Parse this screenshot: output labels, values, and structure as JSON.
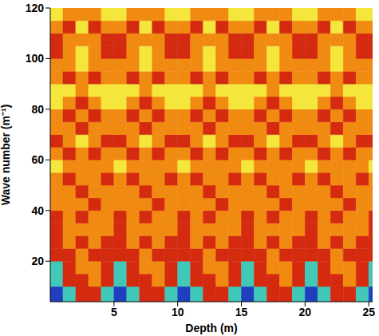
{
  "chart_data": {
    "type": "heatmap",
    "x_label": "Depth (m)",
    "y_label": "Wave number (m⁻¹)",
    "xlim": [
      0,
      25.3
    ],
    "ylim": [
      4,
      120
    ],
    "xticks": [
      5,
      10,
      15,
      20,
      25
    ],
    "yticks": [
      20,
      40,
      60,
      80,
      100,
      120
    ],
    "cells": {
      "x_edges": [
        0,
        1,
        2,
        3,
        4,
        5,
        6,
        7,
        8,
        9,
        10,
        11,
        12,
        13,
        14,
        15,
        16,
        17,
        18,
        19,
        20,
        21,
        22,
        23,
        24,
        25,
        25.3
      ],
      "y_edges": [
        4,
        10,
        15,
        20,
        25,
        30,
        35,
        40,
        45,
        50,
        55,
        60,
        65,
        70,
        75,
        80,
        85,
        90,
        95,
        100,
        105,
        110,
        115,
        120
      ],
      "values": [
        [
          0,
          1,
          2,
          2,
          1,
          0,
          1,
          2,
          2,
          1,
          0,
          1,
          2,
          2,
          1,
          0,
          1,
          2,
          2,
          1,
          0,
          1,
          2,
          2,
          1,
          0
        ],
        [
          1,
          2,
          2,
          3,
          2,
          1,
          2,
          2,
          3,
          2,
          1,
          2,
          2,
          3,
          2,
          1,
          2,
          2,
          3,
          2,
          1,
          2,
          2,
          3,
          2,
          1
        ],
        [
          1,
          2,
          3,
          3,
          2,
          1,
          2,
          3,
          3,
          2,
          1,
          2,
          3,
          3,
          2,
          1,
          2,
          3,
          3,
          2,
          1,
          2,
          3,
          3,
          2,
          1
        ],
        [
          2,
          2,
          3,
          2,
          2,
          2,
          2,
          3,
          2,
          2,
          2,
          2,
          3,
          2,
          2,
          2,
          2,
          3,
          2,
          2,
          2,
          2,
          3,
          2,
          2,
          2
        ],
        [
          2,
          3,
          2,
          3,
          2,
          2,
          3,
          2,
          3,
          2,
          2,
          3,
          2,
          3,
          2,
          2,
          3,
          2,
          3,
          2,
          2,
          3,
          2,
          3,
          2,
          2
        ],
        [
          2,
          3,
          3,
          3,
          3,
          2,
          3,
          3,
          3,
          3,
          2,
          3,
          3,
          3,
          3,
          2,
          3,
          3,
          3,
          3,
          2,
          3,
          3,
          3,
          3,
          2
        ],
        [
          2,
          3,
          2,
          3,
          3,
          2,
          3,
          2,
          3,
          3,
          2,
          3,
          2,
          3,
          3,
          2,
          3,
          2,
          3,
          3,
          2,
          3,
          2,
          3,
          3,
          2
        ],
        [
          3,
          3,
          3,
          2,
          3,
          3,
          3,
          3,
          2,
          3,
          3,
          3,
          3,
          2,
          3,
          3,
          3,
          3,
          2,
          3,
          3,
          3,
          3,
          2,
          3,
          3
        ],
        [
          3,
          3,
          2,
          3,
          3,
          3,
          3,
          2,
          3,
          3,
          3,
          3,
          2,
          3,
          3,
          3,
          3,
          2,
          3,
          3,
          3,
          3,
          2,
          3,
          3,
          3
        ],
        [
          3,
          2,
          3,
          3,
          2,
          3,
          2,
          3,
          3,
          2,
          3,
          2,
          3,
          3,
          2,
          3,
          2,
          3,
          3,
          2,
          3,
          2,
          3,
          3,
          2,
          3
        ],
        [
          4,
          3,
          3,
          3,
          3,
          4,
          3,
          3,
          3,
          3,
          4,
          3,
          3,
          3,
          3,
          4,
          3,
          3,
          3,
          3,
          4,
          3,
          3,
          3,
          3,
          4
        ],
        [
          3,
          2,
          3,
          2,
          3,
          3,
          2,
          3,
          2,
          3,
          3,
          2,
          3,
          2,
          3,
          3,
          2,
          3,
          2,
          3,
          3,
          2,
          3,
          2,
          3,
          3
        ],
        [
          2,
          3,
          4,
          3,
          2,
          2,
          3,
          4,
          3,
          2,
          2,
          3,
          4,
          3,
          2,
          2,
          3,
          4,
          3,
          2,
          2,
          3,
          4,
          3,
          2,
          2
        ],
        [
          3,
          3,
          2,
          3,
          3,
          3,
          3,
          2,
          3,
          3,
          3,
          3,
          2,
          3,
          3,
          3,
          3,
          2,
          3,
          3,
          3,
          3,
          2,
          3,
          3,
          3
        ],
        [
          3,
          2,
          3,
          2,
          3,
          3,
          2,
          3,
          2,
          3,
          3,
          2,
          3,
          2,
          3,
          3,
          2,
          3,
          2,
          3,
          3,
          2,
          3,
          2,
          3,
          3
        ],
        [
          4,
          3,
          2,
          3,
          4,
          4,
          3,
          2,
          3,
          4,
          4,
          3,
          2,
          3,
          4,
          4,
          3,
          2,
          3,
          4,
          4,
          3,
          2,
          3,
          4,
          4
        ],
        [
          4,
          4,
          3,
          4,
          4,
          4,
          4,
          3,
          4,
          4,
          4,
          4,
          3,
          4,
          4,
          4,
          4,
          3,
          4,
          4,
          4,
          4,
          3,
          4,
          4,
          4
        ],
        [
          3,
          2,
          3,
          2,
          3,
          3,
          2,
          3,
          2,
          3,
          3,
          2,
          3,
          2,
          3,
          3,
          2,
          3,
          2,
          3,
          3,
          2,
          3,
          2,
          3,
          3
        ],
        [
          3,
          3,
          4,
          3,
          3,
          3,
          3,
          4,
          3,
          3,
          3,
          3,
          4,
          3,
          3,
          3,
          3,
          4,
          3,
          3,
          3,
          3,
          4,
          3,
          3,
          3
        ],
        [
          2,
          3,
          4,
          3,
          2,
          2,
          3,
          4,
          3,
          2,
          2,
          3,
          4,
          3,
          2,
          2,
          3,
          4,
          3,
          2,
          2,
          3,
          4,
          3,
          2,
          2
        ],
        [
          2,
          3,
          3,
          3,
          2,
          2,
          3,
          3,
          3,
          2,
          2,
          3,
          3,
          3,
          2,
          2,
          3,
          3,
          3,
          2,
          2,
          3,
          3,
          3,
          2,
          2
        ],
        [
          3,
          2,
          4,
          2,
          3,
          3,
          2,
          4,
          2,
          3,
          3,
          2,
          4,
          2,
          3,
          3,
          2,
          4,
          2,
          3,
          3,
          2,
          4,
          2,
          3,
          3
        ],
        [
          4,
          3,
          3,
          3,
          4,
          4,
          3,
          3,
          3,
          4,
          4,
          3,
          3,
          3,
          4,
          4,
          3,
          3,
          3,
          4,
          4,
          3,
          3,
          3,
          4,
          4
        ]
      ]
    }
  }
}
